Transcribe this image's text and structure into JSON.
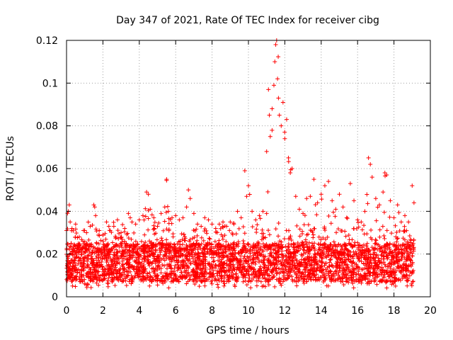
{
  "chart_data": {
    "type": "scatter",
    "title": "Day 347 of 2021, Rate Of TEC Index for receiver cibg",
    "xlabel": "GPS time / hours",
    "ylabel": "ROTI / TECUs",
    "xlim": [
      0,
      20
    ],
    "ylim": [
      0,
      0.12
    ],
    "xticks": [
      0,
      2,
      4,
      6,
      8,
      10,
      12,
      14,
      16,
      18,
      20
    ],
    "yticks": [
      0,
      0.02,
      0.04,
      0.06,
      0.08,
      0.1,
      0.12
    ],
    "xtick_labels": [
      "0",
      "2",
      "4",
      "6",
      "8",
      "10",
      "12",
      "14",
      "16",
      "18",
      "20"
    ],
    "ytick_labels": [
      "0",
      "0.02",
      "0.04",
      "0.06",
      "0.08",
      "0.1",
      "0.12"
    ],
    "grid": true,
    "marker": "+",
    "color": "#ff0000",
    "data_range_hours": [
      0.0,
      19.1
    ],
    "series": [
      {
        "name": "ROTI",
        "x": [
          0.0,
          0.1,
          0.15,
          0.2,
          0.25,
          0.3,
          0.5,
          0.7,
          0.9,
          1.1,
          1.3,
          1.5,
          1.55,
          1.6,
          1.8,
          2.0,
          2.2,
          2.4,
          2.6,
          2.8,
          3.0,
          3.2,
          3.4,
          3.5,
          3.6,
          3.8,
          4.0,
          4.2,
          4.4,
          4.5,
          4.6,
          4.8,
          5.0,
          5.2,
          5.4,
          5.5,
          5.6,
          5.8,
          6.0,
          6.2,
          6.4,
          6.6,
          6.7,
          6.8,
          7.0,
          7.2,
          7.4,
          7.6,
          7.8,
          8.0,
          8.2,
          8.4,
          8.6,
          8.8,
          9.0,
          9.2,
          9.4,
          9.6,
          9.8,
          9.9,
          10.0,
          10.2,
          10.4,
          10.6,
          10.8,
          11.0,
          11.1,
          11.15,
          11.2,
          11.3,
          11.4,
          11.45,
          11.5,
          11.55,
          11.6,
          11.65,
          11.7,
          11.8,
          11.9,
          12.0,
          12.1,
          12.2,
          12.3,
          12.4,
          12.6,
          12.8,
          13.0,
          13.2,
          13.4,
          13.6,
          13.8,
          14.0,
          14.2,
          14.4,
          14.6,
          14.8,
          15.0,
          15.2,
          15.4,
          15.6,
          15.8,
          16.0,
          16.2,
          16.4,
          16.6,
          16.7,
          16.8,
          17.0,
          17.2,
          17.4,
          17.5,
          17.6,
          17.8,
          18.0,
          18.2,
          18.4,
          18.6,
          18.8,
          19.0,
          19.1
        ],
        "y": [
          0.031,
          0.04,
          0.043,
          0.035,
          0.025,
          0.032,
          0.034,
          0.028,
          0.026,
          0.03,
          0.033,
          0.043,
          0.042,
          0.038,
          0.031,
          0.029,
          0.035,
          0.031,
          0.033,
          0.036,
          0.03,
          0.032,
          0.039,
          0.037,
          0.035,
          0.034,
          0.036,
          0.038,
          0.049,
          0.048,
          0.041,
          0.037,
          0.033,
          0.039,
          0.042,
          0.055,
          0.04,
          0.037,
          0.038,
          0.036,
          0.037,
          0.042,
          0.05,
          0.046,
          0.039,
          0.034,
          0.033,
          0.037,
          0.036,
          0.034,
          0.032,
          0.034,
          0.035,
          0.033,
          0.035,
          0.034,
          0.04,
          0.037,
          0.059,
          0.047,
          0.052,
          0.04,
          0.036,
          0.038,
          0.04,
          0.068,
          0.097,
          0.085,
          0.075,
          0.088,
          0.099,
          0.11,
          0.118,
          0.12,
          0.102,
          0.093,
          0.085,
          0.08,
          0.091,
          0.074,
          0.083,
          0.065,
          0.058,
          0.06,
          0.047,
          0.041,
          0.039,
          0.046,
          0.047,
          0.055,
          0.044,
          0.048,
          0.052,
          0.054,
          0.045,
          0.041,
          0.048,
          0.042,
          0.037,
          0.053,
          0.045,
          0.036,
          0.035,
          0.04,
          0.065,
          0.062,
          0.056,
          0.046,
          0.043,
          0.049,
          0.058,
          0.057,
          0.045,
          0.037,
          0.043,
          0.035,
          0.038,
          0.035,
          0.052,
          0.044
        ]
      }
    ]
  }
}
